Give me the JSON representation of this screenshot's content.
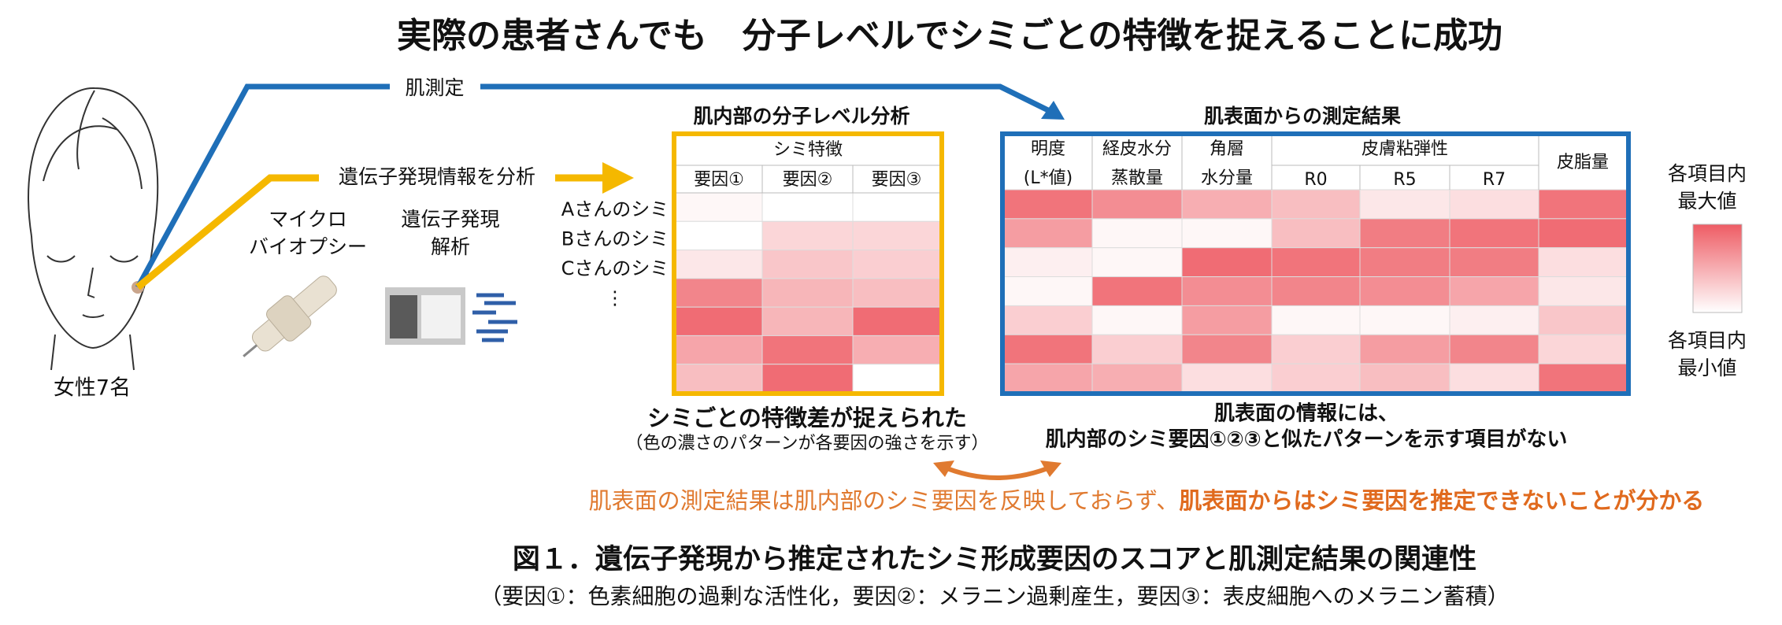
{
  "title": "実際の患者さんでも　分子レベルでシミごとの特徴を捉えることに成功",
  "skin_measurement_label": "肌測定",
  "gene_analysis_label": "遺伝子発現情報を分析",
  "subjects": "女性7名",
  "steps": [
    [
      "マイクロ",
      "バイオプシー"
    ],
    [
      "遺伝子発現",
      "解析"
    ]
  ],
  "internal_analysis": {
    "title": "肌内部の分子レベル分析",
    "group_header": "シミ特徴",
    "columns": [
      "要因①",
      "要因②",
      "要因③"
    ],
    "row_labels": [
      "Aさんのシミ",
      "Bさんのシミ",
      "Cさんのシミ",
      "⋮"
    ],
    "cells": [
      [
        0.05,
        0,
        0
      ],
      [
        0,
        0.25,
        0.25
      ],
      [
        0.15,
        0.35,
        0.3
      ],
      [
        0.75,
        0.45,
        0.4
      ],
      [
        0.9,
        0.45,
        0.9
      ],
      [
        0.55,
        0.85,
        0.5
      ],
      [
        0.4,
        0.9,
        0
      ]
    ],
    "finding": "シミごとの特徴差が捉えられた",
    "finding_note": "（色の濃さのパターンが各要因の強さを示す）"
  },
  "surface_results": {
    "title": "肌表面からの測定結果",
    "group_header": "皮膚粘弾性",
    "columns": [
      [
        "明度",
        "(L*値)"
      ],
      [
        "経皮水分",
        "蒸散量"
      ],
      [
        "角層",
        "水分量"
      ],
      [
        "R0"
      ],
      [
        "R5"
      ],
      [
        "R7"
      ],
      [
        "皮脂量"
      ]
    ],
    "cells": [
      [
        0.85,
        0.7,
        0.5,
        0.4,
        0.15,
        0.2,
        0.85
      ],
      [
        0.6,
        0.05,
        0.05,
        0.4,
        0.8,
        0.85,
        0.9
      ],
      [
        0.1,
        0.05,
        0.9,
        0.85,
        0.8,
        0.8,
        0.2
      ],
      [
        0.05,
        0.85,
        0.7,
        0.75,
        0.7,
        0.55,
        0.15
      ],
      [
        0.3,
        0.05,
        0.6,
        0.05,
        0.05,
        0.1,
        0.35
      ],
      [
        0.85,
        0.3,
        0.75,
        0.3,
        0.6,
        0.75,
        0.25
      ],
      [
        0.55,
        0.5,
        0.2,
        0.3,
        0.4,
        0.2,
        0.85
      ]
    ],
    "finding": [
      "肌表面の情報には、",
      "肌内部のシミ要因①②③と似たパターンを示す項目がない"
    ]
  },
  "legend": {
    "max": [
      "各項目内",
      "最大値"
    ],
    "min": [
      "各項目内",
      "最小値"
    ]
  },
  "conclusion": {
    "text": "肌表面の測定結果は肌内部のシミ要因を反映しておらず、",
    "emphasis": "肌表面からはシミ要因を推定できないことが分かる"
  },
  "caption": {
    "title": "図１．遺伝子発現から推定されたシミ形成要因のスコアと肌測定結果の関連性",
    "note": "（要因①：色素細胞の過剰な活性化，要因②：メラニン過剰産生，要因③：表皮細胞へのメラニン蓄積）"
  }
}
